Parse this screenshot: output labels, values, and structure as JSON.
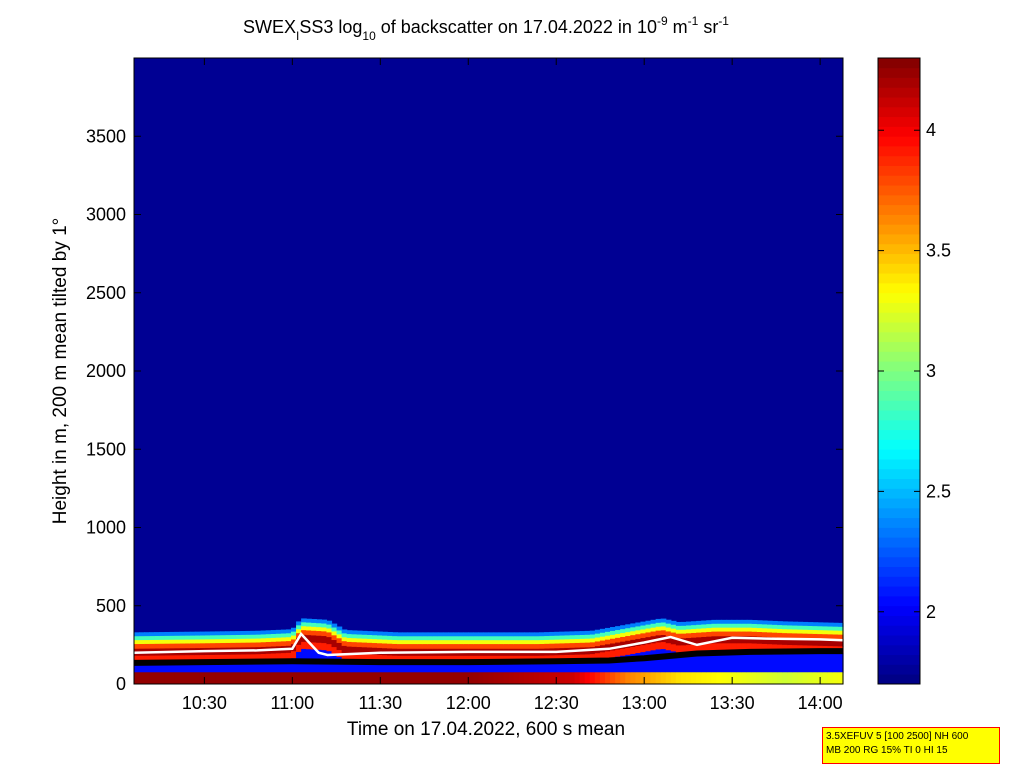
{
  "chart_data": {
    "type": "heatmap",
    "title": {
      "prefix": "SWEX",
      "prefix_sub": "I",
      "station": "SS3 log",
      "log_sub": "10",
      "middle": " of backscatter on 17.04.2022 in 10",
      "exp1": "-9",
      "unit1": " m",
      "exp2": "-1",
      "unit2": " sr",
      "exp3": "-1"
    },
    "xlabel": "Time on 17.04.2022, 600 s mean",
    "ylabel": "Height in m, 200 m mean tilted by 1°",
    "x_unit": "hours",
    "xlim": [
      10.1,
      14.13
    ],
    "ylim": [
      0,
      4000
    ],
    "x_ticks": [
      {
        "v": 10.5,
        "label": "10:30"
      },
      {
        "v": 11.0,
        "label": "11:00"
      },
      {
        "v": 11.5,
        "label": "11:30"
      },
      {
        "v": 12.0,
        "label": "12:00"
      },
      {
        "v": 12.5,
        "label": "12:30"
      },
      {
        "v": 13.0,
        "label": "13:00"
      },
      {
        "v": 13.5,
        "label": "13:30"
      },
      {
        "v": 14.0,
        "label": "14:00"
      }
    ],
    "y_ticks": [
      {
        "v": 0,
        "label": "0"
      },
      {
        "v": 500,
        "label": "500"
      },
      {
        "v": 1000,
        "label": "1000"
      },
      {
        "v": 1500,
        "label": "1500"
      },
      {
        "v": 2000,
        "label": "2000"
      },
      {
        "v": 2500,
        "label": "2500"
      },
      {
        "v": 3000,
        "label": "3000"
      },
      {
        "v": 3500,
        "label": "3500"
      }
    ],
    "colorbar": {
      "lim": [
        1.7,
        4.3
      ],
      "ticks": [
        {
          "v": 2.0,
          "label": "2"
        },
        {
          "v": 2.5,
          "label": "2.5"
        },
        {
          "v": 3.0,
          "label": "3"
        },
        {
          "v": 3.5,
          "label": "3.5"
        },
        {
          "v": 4.0,
          "label": "4"
        }
      ],
      "colormap": "jet"
    },
    "background_value": 1.75,
    "layer_top": {
      "x": [
        10.1,
        10.5,
        10.8,
        11.0,
        11.05,
        11.2,
        11.3,
        11.6,
        12.0,
        12.4,
        12.7,
        12.9,
        13.1,
        13.2,
        13.4,
        13.6,
        13.8,
        14.13
      ],
      "y": [
        330,
        335,
        340,
        350,
        420,
        410,
        345,
        330,
        330,
        330,
        340,
        380,
        420,
        395,
        410,
        410,
        400,
        390
      ]
    },
    "cloud_base_line": {
      "color": "#ffffff",
      "x": [
        10.1,
        10.5,
        10.8,
        11.0,
        11.05,
        11.15,
        11.2,
        11.5,
        12.0,
        12.5,
        12.8,
        13.0,
        13.15,
        13.3,
        13.5,
        13.7,
        14.0,
        14.13
      ],
      "y": [
        200,
        210,
        215,
        225,
        320,
        200,
        185,
        200,
        205,
        205,
        225,
        265,
        300,
        250,
        295,
        290,
        285,
        280
      ]
    },
    "mixing_layer_line": {
      "color": "#000000",
      "x": [
        10.1,
        10.5,
        11.0,
        11.5,
        12.0,
        12.5,
        12.8,
        13.0,
        13.3,
        13.6,
        14.0,
        14.13
      ],
      "y": [
        135,
        140,
        145,
        140,
        140,
        145,
        150,
        165,
        195,
        205,
        210,
        210
      ]
    },
    "near_surface": {
      "x": [
        10.1,
        11.0,
        12.0,
        12.6,
        12.9,
        13.2,
        13.5,
        13.8,
        14.13
      ],
      "v": [
        4.25,
        4.25,
        4.25,
        4.1,
        3.65,
        3.4,
        3.3,
        3.2,
        3.3
      ]
    },
    "info_text": [
      "3.5XEFUV 5 [100 2500] NH 600",
      "MB 200 RG 15% TI 0 HI 15"
    ]
  }
}
